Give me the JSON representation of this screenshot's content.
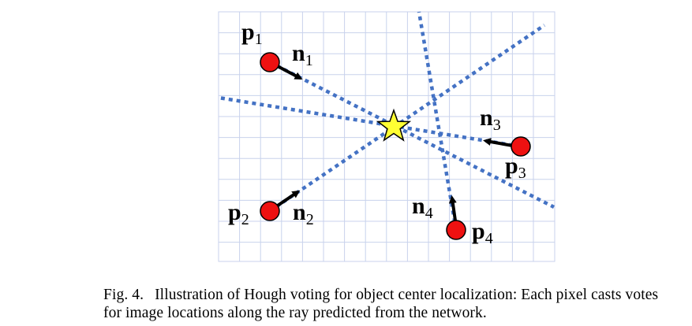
{
  "caption": {
    "label": "Fig. 4.",
    "text": "Illustration of Hough voting for object center localization: Each pixel casts votes for image locations along the ray predicted from the network."
  },
  "colors": {
    "grid": "#c8d2ec",
    "ray": "#4472c4",
    "pixel": "#ee1111",
    "center": "#ffff33",
    "arrow": "#000000"
  },
  "points": [
    {
      "label": "p",
      "sub": "1",
      "normal_label": "n",
      "normal_sub": "1"
    },
    {
      "label": "p",
      "sub": "2",
      "normal_label": "n",
      "normal_sub": "2"
    },
    {
      "label": "p",
      "sub": "3",
      "normal_label": "n",
      "normal_sub": "3"
    },
    {
      "label": "p",
      "sub": "4",
      "normal_label": "n",
      "normal_sub": "4"
    }
  ],
  "center_icon": "star-icon"
}
